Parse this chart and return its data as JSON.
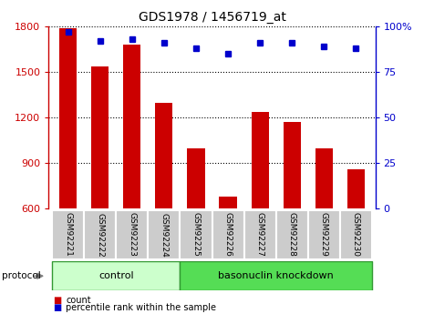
{
  "title": "GDS1978 / 1456719_at",
  "samples": [
    "GSM92221",
    "GSM92222",
    "GSM92223",
    "GSM92224",
    "GSM92225",
    "GSM92226",
    "GSM92227",
    "GSM92228",
    "GSM92229",
    "GSM92230"
  ],
  "counts": [
    1790,
    1540,
    1680,
    1300,
    1000,
    680,
    1240,
    1175,
    1000,
    860
  ],
  "percentile_ranks": [
    97,
    92,
    93,
    91,
    88,
    85,
    91,
    91,
    89,
    88
  ],
  "groups": [
    {
      "label": "control",
      "start": 0,
      "end": 3
    },
    {
      "label": "basonuclin knockdown",
      "start": 4,
      "end": 9
    }
  ],
  "ylim_left": [
    600,
    1800
  ],
  "ylim_right": [
    0,
    100
  ],
  "yticks_left": [
    600,
    900,
    1200,
    1500,
    1800
  ],
  "yticks_right": [
    0,
    25,
    50,
    75,
    100
  ],
  "bar_color": "#cc0000",
  "dot_color": "#0000cc",
  "group_bg_control": "#ccffcc",
  "group_bg_knockdown": "#55dd55",
  "tick_label_bg": "#cccccc",
  "left_axis_color": "#cc0000",
  "right_axis_color": "#0000cc",
  "gridline_color": "#888888"
}
